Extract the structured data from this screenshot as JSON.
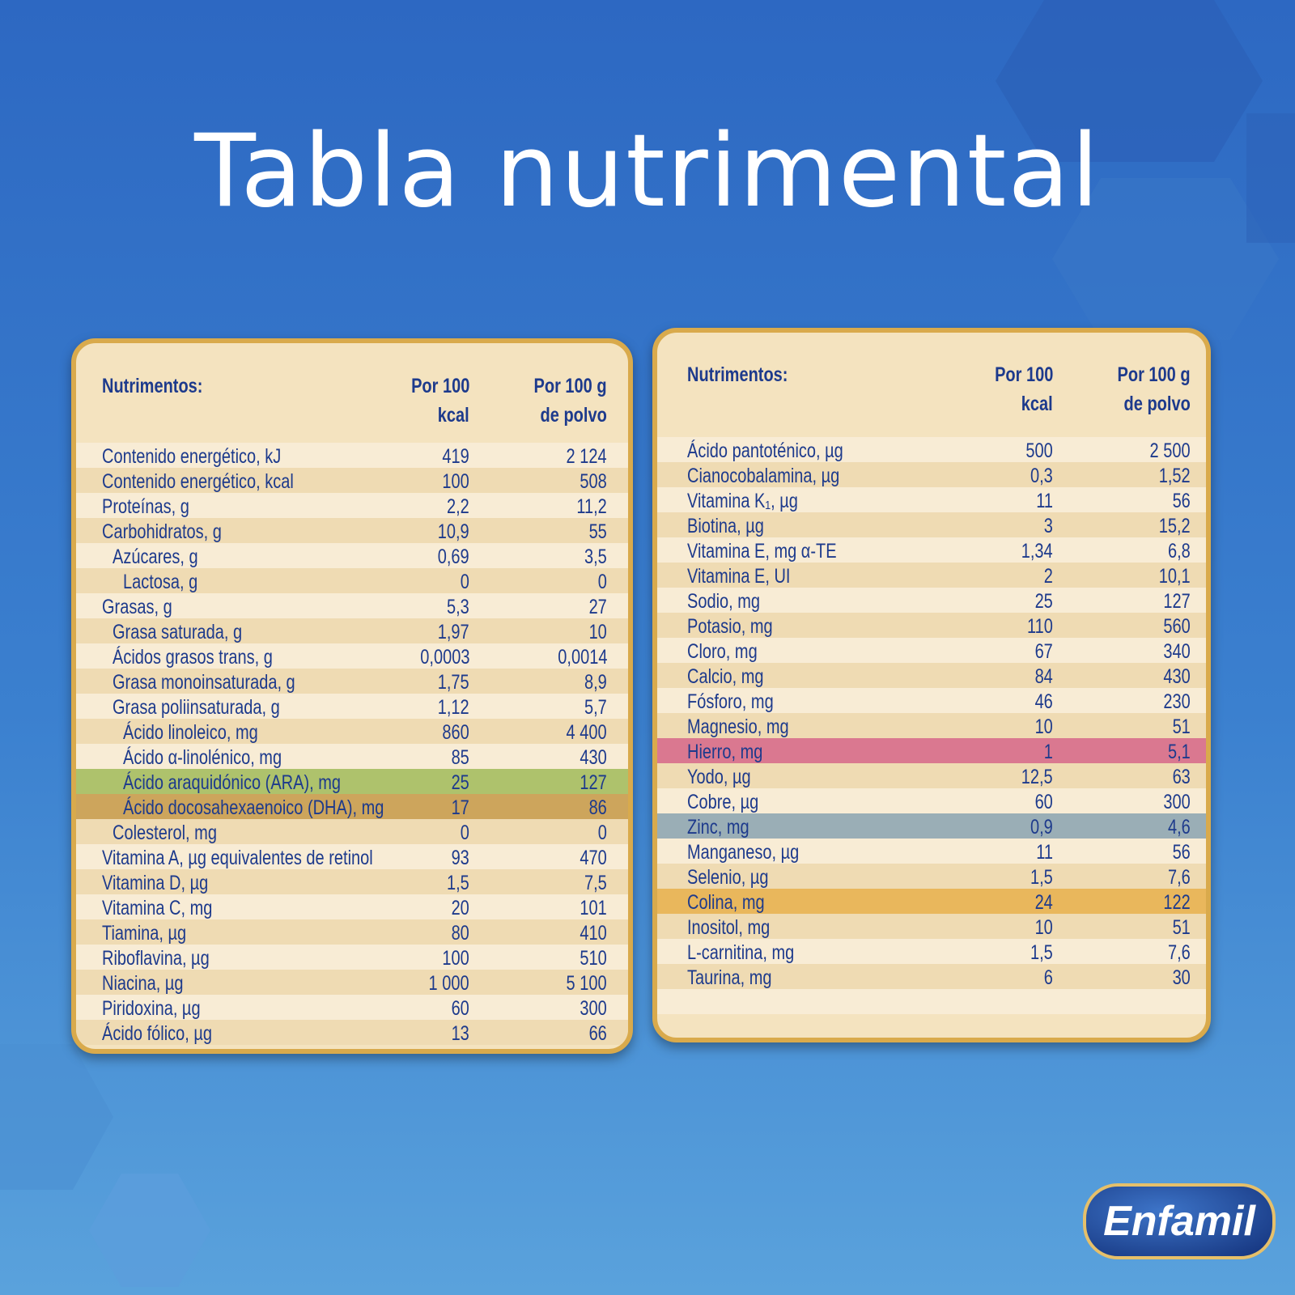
{
  "title": "Tabla nutrimental",
  "tables": [
    {
      "header": {
        "name": "Nutrimentos:",
        "per_100_kcal": [
          "Por 100",
          "kcal"
        ],
        "per_100_g": [
          "Por 100 g",
          "de polvo"
        ]
      },
      "rows": [
        {
          "name": "Contenido energético, kJ",
          "per_100_kcal": "419",
          "per_100_g": "2 124",
          "indent": 0
        },
        {
          "name": "Contenido energético, kcal",
          "per_100_kcal": "100",
          "per_100_g": "508",
          "indent": 0
        },
        {
          "name": "Proteínas, g",
          "per_100_kcal": "2,2",
          "per_100_g": "11,2",
          "indent": 0
        },
        {
          "name": "Carbohidratos, g",
          "per_100_kcal": "10,9",
          "per_100_g": "55",
          "indent": 0
        },
        {
          "name": "Azúcares, g",
          "per_100_kcal": "0,69",
          "per_100_g": "3,5",
          "indent": 1
        },
        {
          "name": "Lactosa, g",
          "per_100_kcal": "0",
          "per_100_g": "0",
          "indent": 2
        },
        {
          "name": "Grasas, g",
          "per_100_kcal": "5,3",
          "per_100_g": "27",
          "indent": 0
        },
        {
          "name": "Grasa saturada, g",
          "per_100_kcal": "1,97",
          "per_100_g": "10",
          "indent": 1
        },
        {
          "name": "Ácidos grasos trans, g",
          "per_100_kcal": "0,0003",
          "per_100_g": "0,0014",
          "indent": 1
        },
        {
          "name": "Grasa monoinsaturada, g",
          "per_100_kcal": "1,75",
          "per_100_g": "8,9",
          "indent": 1
        },
        {
          "name": "Grasa poliinsaturada, g",
          "per_100_kcal": "1,12",
          "per_100_g": "5,7",
          "indent": 1
        },
        {
          "name": "Ácido linoleico, mg",
          "per_100_kcal": "860",
          "per_100_g": "4 400",
          "indent": 2
        },
        {
          "name": "Ácido α-linolénico, mg",
          "per_100_kcal": "85",
          "per_100_g": "430",
          "indent": 2
        },
        {
          "name": "Ácido araquidónico (ARA), mg",
          "per_100_kcal": "25",
          "per_100_g": "127",
          "indent": 2,
          "color": "#aec26c"
        },
        {
          "name": "Ácido docosahexaenoico (DHA), mg",
          "per_100_kcal": "17",
          "per_100_g": "86",
          "indent": 2,
          "color": "#cda55c"
        },
        {
          "name": "Colesterol, mg",
          "per_100_kcal": "0",
          "per_100_g": "0",
          "indent": 1
        },
        {
          "name": "Vitamina A, µg equivalentes de retinol",
          "per_100_kcal": "93",
          "per_100_g": "470",
          "indent": 0
        },
        {
          "name": "Vitamina D, µg",
          "per_100_kcal": "1,5",
          "per_100_g": "7,5",
          "indent": 0
        },
        {
          "name": "Vitamina C, mg",
          "per_100_kcal": "20",
          "per_100_g": "101",
          "indent": 0
        },
        {
          "name": "Tiamina, µg",
          "per_100_kcal": "80",
          "per_100_g": "410",
          "indent": 0
        },
        {
          "name": "Riboflavina, µg",
          "per_100_kcal": "100",
          "per_100_g": "510",
          "indent": 0
        },
        {
          "name": "Niacina, µg",
          "per_100_kcal": "1 000",
          "per_100_g": "5 100",
          "indent": 0
        },
        {
          "name": "Piridoxina, µg",
          "per_100_kcal": "60",
          "per_100_g": "300",
          "indent": 0
        },
        {
          "name": "Ácido fólico, µg",
          "per_100_kcal": "13",
          "per_100_g": "66",
          "indent": 0
        }
      ]
    },
    {
      "header": {
        "name": "Nutrimentos:",
        "per_100_kcal": [
          "Por 100",
          "kcal"
        ],
        "per_100_g": [
          "Por 100 g",
          "de polvo"
        ]
      },
      "rows": [
        {
          "name": "Ácido pantoténico, µg",
          "per_100_kcal": "500",
          "per_100_g": "2 500",
          "indent": 0
        },
        {
          "name": "Cianocobalamina, µg",
          "per_100_kcal": "0,3",
          "per_100_g": "1,52",
          "indent": 0
        },
        {
          "name": "Vitamina K₁, µg",
          "per_100_kcal": "11",
          "per_100_g": "56",
          "indent": 0
        },
        {
          "name": "Biotina, µg",
          "per_100_kcal": "3",
          "per_100_g": "15,2",
          "indent": 0
        },
        {
          "name": "Vitamina E, mg α-TE",
          "per_100_kcal": "1,34",
          "per_100_g": "6,8",
          "indent": 0
        },
        {
          "name": "Vitamina E, UI",
          "per_100_kcal": "2",
          "per_100_g": "10,1",
          "indent": 0
        },
        {
          "name": "Sodio, mg",
          "per_100_kcal": "25",
          "per_100_g": "127",
          "indent": 0
        },
        {
          "name": "Potasio, mg",
          "per_100_kcal": "110",
          "per_100_g": "560",
          "indent": 0
        },
        {
          "name": "Cloro, mg",
          "per_100_kcal": "67",
          "per_100_g": "340",
          "indent": 0
        },
        {
          "name": "Calcio, mg",
          "per_100_kcal": "84",
          "per_100_g": "430",
          "indent": 0
        },
        {
          "name": "Fósforo, mg",
          "per_100_kcal": "46",
          "per_100_g": "230",
          "indent": 0
        },
        {
          "name": "Magnesio, mg",
          "per_100_kcal": "10",
          "per_100_g": "51",
          "indent": 0
        },
        {
          "name": "Hierro, mg",
          "per_100_kcal": "1",
          "per_100_g": "5,1",
          "indent": 0,
          "color": "#da7890"
        },
        {
          "name": "Yodo, µg",
          "per_100_kcal": "12,5",
          "per_100_g": "63",
          "indent": 0
        },
        {
          "name": "Cobre, µg",
          "per_100_kcal": "60",
          "per_100_g": "300",
          "indent": 0
        },
        {
          "name": "Zinc, mg",
          "per_100_kcal": "0,9",
          "per_100_g": "4,6",
          "indent": 0,
          "color": "#9aaeb6"
        },
        {
          "name": "Manganeso, µg",
          "per_100_kcal": "11",
          "per_100_g": "56",
          "indent": 0
        },
        {
          "name": "Selenio, µg",
          "per_100_kcal": "1,5",
          "per_100_g": "7,6",
          "indent": 0
        },
        {
          "name": "Colina, mg",
          "per_100_kcal": "24",
          "per_100_g": "122",
          "indent": 0,
          "color": "#e9b75c"
        },
        {
          "name": "Inositol, mg",
          "per_100_kcal": "10",
          "per_100_g": "51",
          "indent": 0
        },
        {
          "name": "L-carnitina, mg",
          "per_100_kcal": "1,5",
          "per_100_g": "7,6",
          "indent": 0
        },
        {
          "name": "Taurina, mg",
          "per_100_kcal": "6",
          "per_100_g": "30",
          "indent": 0
        }
      ]
    }
  ],
  "logo": "Enfamil"
}
